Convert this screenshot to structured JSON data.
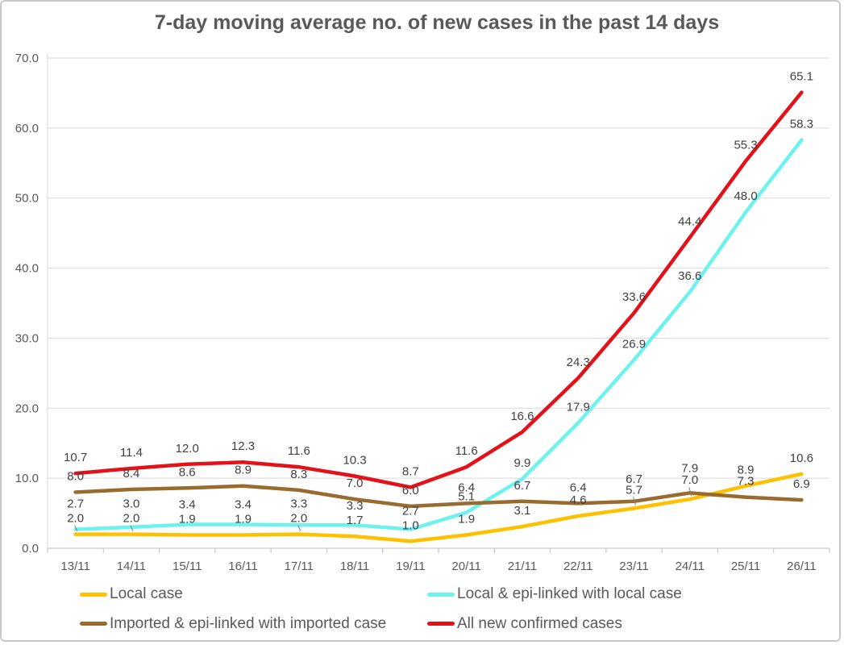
{
  "title": "7-day moving average no. of new cases in the past 14 days",
  "chart_data": {
    "type": "line",
    "categories": [
      "13/11",
      "14/11",
      "15/11",
      "16/11",
      "17/11",
      "18/11",
      "19/11",
      "20/11",
      "21/11",
      "22/11",
      "23/11",
      "24/11",
      "25/11",
      "26/11"
    ],
    "series": [
      {
        "name": "Local case",
        "color": "#FFC000",
        "values": [
          2.0,
          2.0,
          1.9,
          1.9,
          2.0,
          1.7,
          1.0,
          1.9,
          3.1,
          4.6,
          5.7,
          7.0,
          8.9,
          10.6
        ]
      },
      {
        "name": "Local & epi-linked with local case",
        "color": "#6CF3EF",
        "values": [
          2.7,
          3.0,
          3.4,
          3.4,
          3.3,
          3.3,
          2.7,
          5.1,
          9.9,
          17.9,
          26.9,
          36.6,
          48.0,
          58.3
        ]
      },
      {
        "name": "Imported & epi-linked with imported case",
        "color": "#9A6B2F",
        "values": [
          8.0,
          8.4,
          8.6,
          8.9,
          8.3,
          7.0,
          6.0,
          6.4,
          6.7,
          6.4,
          6.7,
          7.9,
          7.3,
          6.9
        ]
      },
      {
        "name": "All new confirmed cases",
        "color": "#E41119",
        "values": [
          10.7,
          11.4,
          12.0,
          12.3,
          11.6,
          10.3,
          8.7,
          11.6,
          16.6,
          24.3,
          33.6,
          44.4,
          55.3,
          65.1
        ]
      }
    ],
    "ylim": [
      0,
      70
    ],
    "yticks": [
      "0.0",
      "10.0",
      "20.0",
      "30.0",
      "40.0",
      "50.0",
      "60.0",
      "70.0"
    ],
    "grid": true,
    "legend_position": "bottom",
    "data_labels": true
  },
  "colors": {
    "gridline": "#D9D9D9",
    "axis": "#BFBFBF",
    "data_label_text": "#404040",
    "tick_text": "#595959",
    "title_text": "#595959",
    "leader_line": "#808080"
  }
}
